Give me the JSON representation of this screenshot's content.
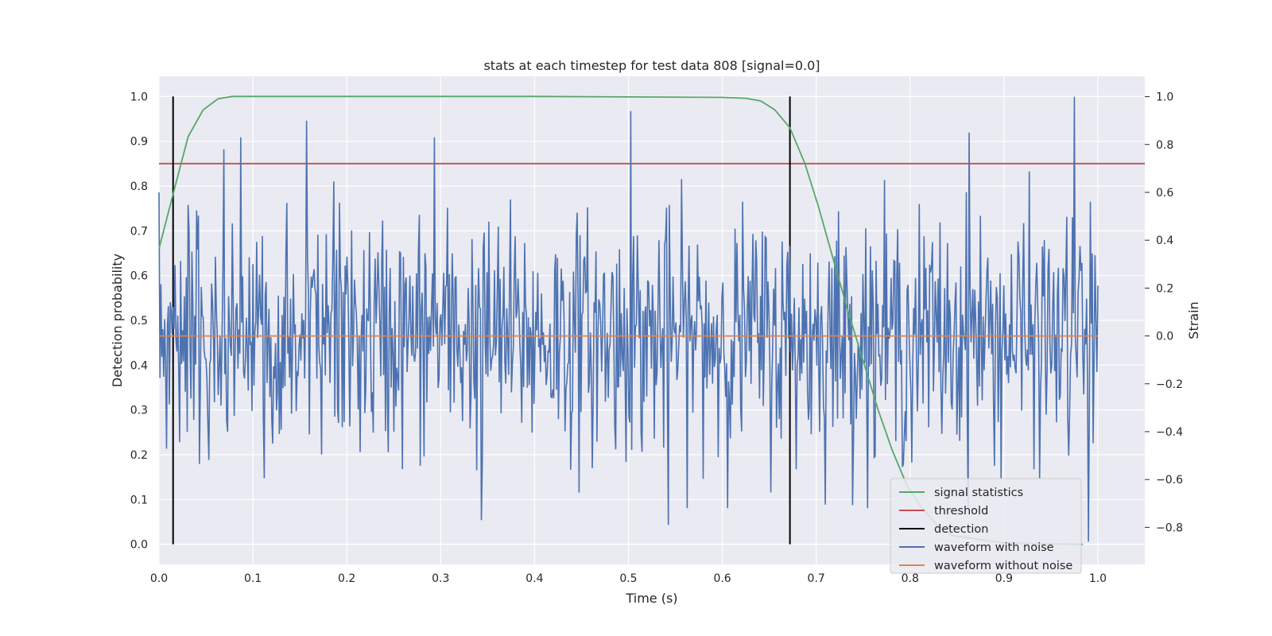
{
  "chart_data": {
    "type": "line",
    "title": "stats at each timestep for test data 808 [signal=0.0]",
    "xlabel": "Time (s)",
    "ylabel": "Detection probability",
    "y2label": "Strain",
    "xlim": [
      0.0,
      1.05
    ],
    "ylim": [
      -0.045,
      1.045
    ],
    "y2lim": [
      -0.955,
      1.085
    ],
    "x_ticks": [
      "0.0",
      "0.1",
      "0.2",
      "0.3",
      "0.4",
      "0.5",
      "0.6",
      "0.7",
      "0.8",
      "0.9",
      "1.0"
    ],
    "y_ticks": [
      "0.0",
      "0.1",
      "0.2",
      "0.3",
      "0.4",
      "0.5",
      "0.6",
      "0.7",
      "0.8",
      "0.9",
      "1.0"
    ],
    "y2_ticks": [
      "−0.8",
      "−0.6",
      "−0.4",
      "−0.2",
      "0.0",
      "0.2",
      "0.4",
      "0.6",
      "0.8",
      "1.0"
    ],
    "grid": true,
    "legend_position": "lower-right",
    "series": [
      {
        "name": "signal statistics",
        "color": "#55a868",
        "axis": "left",
        "x": [
          0.0,
          0.016,
          0.031,
          0.047,
          0.063,
          0.078,
          0.094,
          0.2,
          0.4,
          0.6,
          0.625,
          0.641,
          0.656,
          0.672,
          0.688,
          0.703,
          0.719,
          0.734,
          0.75,
          0.766,
          0.781,
          0.797,
          0.813,
          0.828,
          0.844,
          0.9,
          0.95,
          0.984
        ],
        "values": [
          0.66,
          0.79,
          0.91,
          0.97,
          0.995,
          1.0,
          1.0,
          1.0,
          1.0,
          0.998,
          0.996,
          0.99,
          0.97,
          0.93,
          0.85,
          0.75,
          0.63,
          0.52,
          0.41,
          0.3,
          0.21,
          0.13,
          0.08,
          0.045,
          0.02,
          0.003,
          0.001,
          0.0
        ]
      },
      {
        "name": "threshold",
        "color": "#c44e52",
        "axis": "left",
        "x": [
          0.0,
          1.05
        ],
        "values": [
          0.85,
          0.85
        ]
      },
      {
        "name": "detection",
        "color": "#000000",
        "axis": "left",
        "type": "vlines",
        "x": [
          0.015,
          0.672
        ],
        "ymin": 0.0,
        "ymax": 1.0
      },
      {
        "name": "waveform with noise",
        "color": "#4c72b0",
        "axis": "right",
        "x_start": 0.0,
        "x_end": 1.0,
        "n_points": 1000,
        "std": 0.25,
        "peaks": [
          {
            "x": 0.0,
            "y": 0.6
          },
          {
            "x": 0.069,
            "y": 0.78
          },
          {
            "x": 0.087,
            "y": 0.83
          },
          {
            "x": 0.157,
            "y": 0.9
          },
          {
            "x": 0.293,
            "y": 0.83
          },
          {
            "x": 0.343,
            "y": -0.77
          },
          {
            "x": 0.503,
            "y": 0.94
          },
          {
            "x": 0.543,
            "y": -0.79
          },
          {
            "x": 0.863,
            "y": 0.85
          },
          {
            "x": 0.975,
            "y": 1.0
          },
          {
            "x": 0.99,
            "y": -0.86
          }
        ]
      },
      {
        "name": "waveform without noise",
        "color": "#dd8452",
        "axis": "right",
        "x": [
          0.0,
          1.0
        ],
        "values": [
          0.0,
          0.0
        ]
      }
    ]
  }
}
